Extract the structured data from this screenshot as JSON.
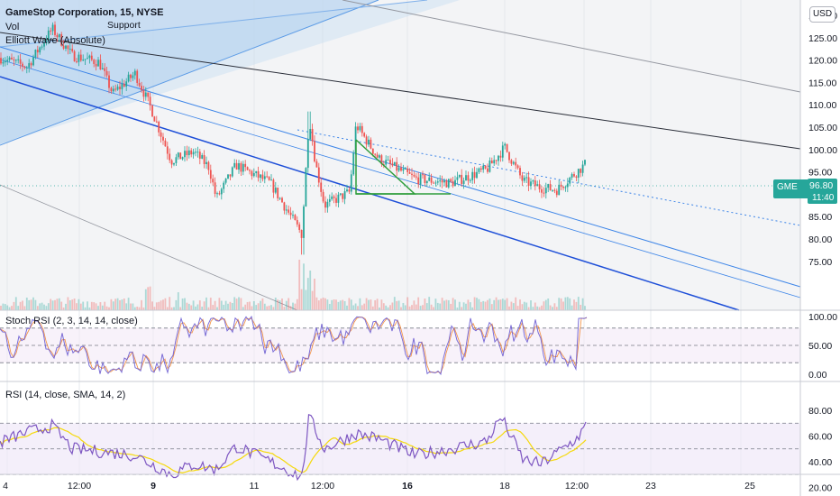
{
  "header": {
    "symbol_line": "GameStop Corporation, 15, NYSE",
    "indicator_vol": "Vol",
    "indicator_elliott": "Elliott Wave (Absolute)",
    "annotation_support": "Support",
    "currency_badge": "USD"
  },
  "price_tag": {
    "symbol": "GME",
    "price": "96.80",
    "countdown": "11:40"
  },
  "colors": {
    "up": "#26a69a",
    "down": "#ef5350",
    "channel_blue": "#2962ff",
    "line_blue": "#2f80ed",
    "shade": "#bbd6f0",
    "rsi_line": "#7e57c2",
    "rsi_signal": "#f5d90a",
    "green_tag": "#26a69a"
  },
  "panes": {
    "stoch_label": "Stoch RSI (2, 3, 14, 14, close)",
    "rsi_label": "RSI (14, close, SMA, 14, 2)"
  },
  "chart_data": [
    {
      "type": "candlestick",
      "title": "GameStop Corporation, 15, NYSE",
      "ylim": [
        72,
        133
      ],
      "y_ticks": [
        "75.00",
        "80.00",
        "85.00",
        "90.00",
        "95.00",
        "100.00",
        "105.00",
        "110.00",
        "115.00",
        "120.00",
        "125.00",
        "130.00"
      ],
      "x_ticks": [
        "4",
        "12:00",
        "9",
        "11",
        "12:00",
        "16",
        "18",
        "12:00",
        "23",
        "25"
      ],
      "last_price": 96.8,
      "close_path_anchors": [
        [
          0,
          120.5
        ],
        [
          30,
          118.5
        ],
        [
          58,
          127.0
        ],
        [
          80,
          121.0
        ],
        [
          110,
          119.5
        ],
        [
          125,
          112.5
        ],
        [
          150,
          117.0
        ],
        [
          168,
          109.0
        ],
        [
          190,
          97.5
        ],
        [
          215,
          99.5
        ],
        [
          232,
          96.0
        ],
        [
          240,
          89.0
        ],
        [
          262,
          96.5
        ],
        [
          300,
          92.5
        ],
        [
          335,
          81.0
        ],
        [
          343,
          107.5
        ],
        [
          350,
          97.0
        ],
        [
          360,
          87.5
        ],
        [
          388,
          90.5
        ],
        [
          395,
          105.5
        ],
        [
          420,
          98.0
        ],
        [
          460,
          93.5
        ],
        [
          500,
          92.5
        ],
        [
          540,
          95.5
        ],
        [
          560,
          100.5
        ],
        [
          580,
          93.0
        ],
        [
          600,
          91.5
        ],
        [
          618,
          91.0
        ],
        [
          640,
          95.0
        ],
        [
          650,
          96.8
        ]
      ],
      "series": [
        {
          "name": "Vol",
          "type": "volume"
        }
      ]
    },
    {
      "type": "line",
      "title": "Stoch RSI (2, 3, 14, 14, close)",
      "ylim": [
        0,
        100
      ],
      "y_ticks": [
        "100.00",
        "50.00",
        "0.00"
      ],
      "levels": [
        80,
        50,
        20
      ],
      "last_values": [
        100,
        96
      ]
    },
    {
      "type": "line",
      "title": "RSI (14, close, SMA, 14, 2)",
      "ylim": [
        15,
        85
      ],
      "y_ticks": [
        "80.00",
        "60.00",
        "40.00",
        "20.00"
      ],
      "levels": [
        70,
        50,
        30
      ],
      "last_values": [
        68,
        58
      ]
    }
  ]
}
